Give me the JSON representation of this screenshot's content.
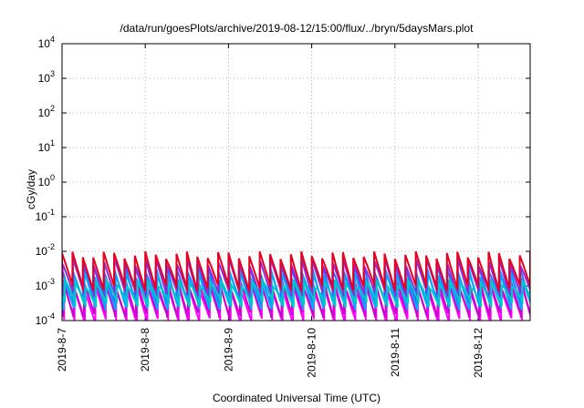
{
  "chart_data": {
    "type": "line",
    "title": "/data/run/goesPlots/archive/2019-08-12/15:00/flux/../bryn/5daysMars.plot",
    "xlabel": "Coordinated Universal Time (UTC)",
    "ylabel": "cGy/day",
    "x_tick_labels": [
      "2019-8-7",
      "2019-8-8",
      "2019-8-9",
      "2019-8-10",
      "2019-8-11",
      "2019-8-12"
    ],
    "xlim": [
      "2019-08-07T00:00",
      "2019-08-12T15:00"
    ],
    "y_scale": "log",
    "ylim": [
      0.0001,
      10000
    ],
    "y_ticks": [
      {
        "value": 0.0001,
        "base": "10",
        "exp": "-4"
      },
      {
        "value": 0.001,
        "base": "10",
        "exp": "-3"
      },
      {
        "value": 0.01,
        "base": "10",
        "exp": "-2"
      },
      {
        "value": 0.1,
        "base": "10",
        "exp": "-1"
      },
      {
        "value": 1,
        "base": "10",
        "exp": "0"
      },
      {
        "value": 10,
        "base": "10",
        "exp": "1"
      },
      {
        "value": 100,
        "base": "10",
        "exp": "2"
      },
      {
        "value": 1000,
        "base": "10",
        "exp": "3"
      },
      {
        "value": 10000,
        "base": "10",
        "exp": "4"
      }
    ],
    "grid": true,
    "legend": "none",
    "sawtooth_period_hours": 3,
    "series": [
      {
        "color": "#ff00ff",
        "peak": 0.0009,
        "trough": 0.0001,
        "phase_hours": 0.6
      },
      {
        "color": "#cc00cc",
        "peak": 0.0014,
        "trough": 0.00015,
        "phase_hours": 0.3
      },
      {
        "color": "#3366ff",
        "peak": 0.0035,
        "trough": 0.0004,
        "phase_hours": 0.0
      },
      {
        "color": "#00aaff",
        "peak": 0.002,
        "trough": 0.00025,
        "phase_hours": 0.45
      },
      {
        "color": "#8a2be2",
        "peak": 0.005,
        "trough": 0.0006,
        "phase_hours": 0.15
      },
      {
        "color": "#e8001c",
        "peak": 0.008,
        "trough": 0.0009,
        "phase_hours": 0.0
      },
      {
        "color": "#00c8c8",
        "peak": 0.0012,
        "trough": 0.0003,
        "phase_hours": 0.8
      }
    ],
    "colors": {
      "grid": "#a0a0a0",
      "axis": "#000000"
    }
  }
}
